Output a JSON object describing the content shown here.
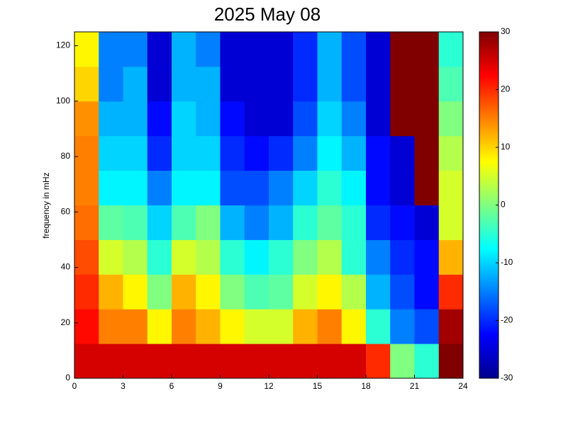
{
  "chart_data": {
    "type": "heatmap",
    "title": "2025 May 08",
    "y_label": "frequency in mHz",
    "xlim": [
      0,
      24
    ],
    "xticks": [
      0,
      3,
      6,
      9,
      12,
      15,
      18,
      21,
      24
    ],
    "ylim": [
      0,
      125
    ],
    "yticks": [
      0,
      20,
      40,
      60,
      80,
      100,
      120
    ],
    "zlim": [
      -30,
      30
    ],
    "zticks": [
      -30,
      -20,
      -10,
      0,
      10,
      20,
      30
    ],
    "colormap": "jet",
    "values": [
      [
        25,
        25,
        25,
        25,
        25,
        25,
        25,
        25,
        25,
        25,
        25,
        25,
        20,
        0,
        -5,
        30
      ],
      [
        22,
        15,
        15,
        8,
        15,
        12,
        8,
        5,
        5,
        12,
        15,
        8,
        -5,
        -15,
        -18,
        28
      ],
      [
        20,
        12,
        8,
        0,
        12,
        8,
        0,
        -3,
        -2,
        5,
        8,
        3,
        -12,
        -18,
        -22,
        20
      ],
      [
        18,
        5,
        3,
        -5,
        5,
        3,
        -5,
        -8,
        -5,
        0,
        3,
        -5,
        -15,
        -20,
        -22,
        12
      ],
      [
        16,
        -2,
        -3,
        -10,
        -3,
        0,
        -12,
        -15,
        -12,
        -5,
        -2,
        -5,
        -20,
        -22,
        -25,
        5
      ],
      [
        15,
        -8,
        -8,
        -15,
        -8,
        -8,
        -18,
        -18,
        -15,
        -10,
        -5,
        -8,
        -22,
        -25,
        30,
        5
      ],
      [
        15,
        -10,
        -10,
        -20,
        -10,
        -10,
        -20,
        -22,
        -20,
        -15,
        -8,
        -12,
        -22,
        -25,
        30,
        3
      ],
      [
        14,
        -12,
        -12,
        -22,
        -10,
        -12,
        -22,
        -25,
        -25,
        -18,
        -10,
        -15,
        -25,
        30,
        30,
        0
      ],
      [
        10,
        -15,
        -12,
        -25,
        -12,
        -12,
        -25,
        -25,
        -25,
        -20,
        -12,
        -18,
        -25,
        30,
        30,
        -3
      ],
      [
        8,
        -15,
        -15,
        -25,
        -12,
        -15,
        -25,
        -25,
        -25,
        -20,
        -12,
        -18,
        -25,
        30,
        30,
        -5
      ]
    ]
  }
}
